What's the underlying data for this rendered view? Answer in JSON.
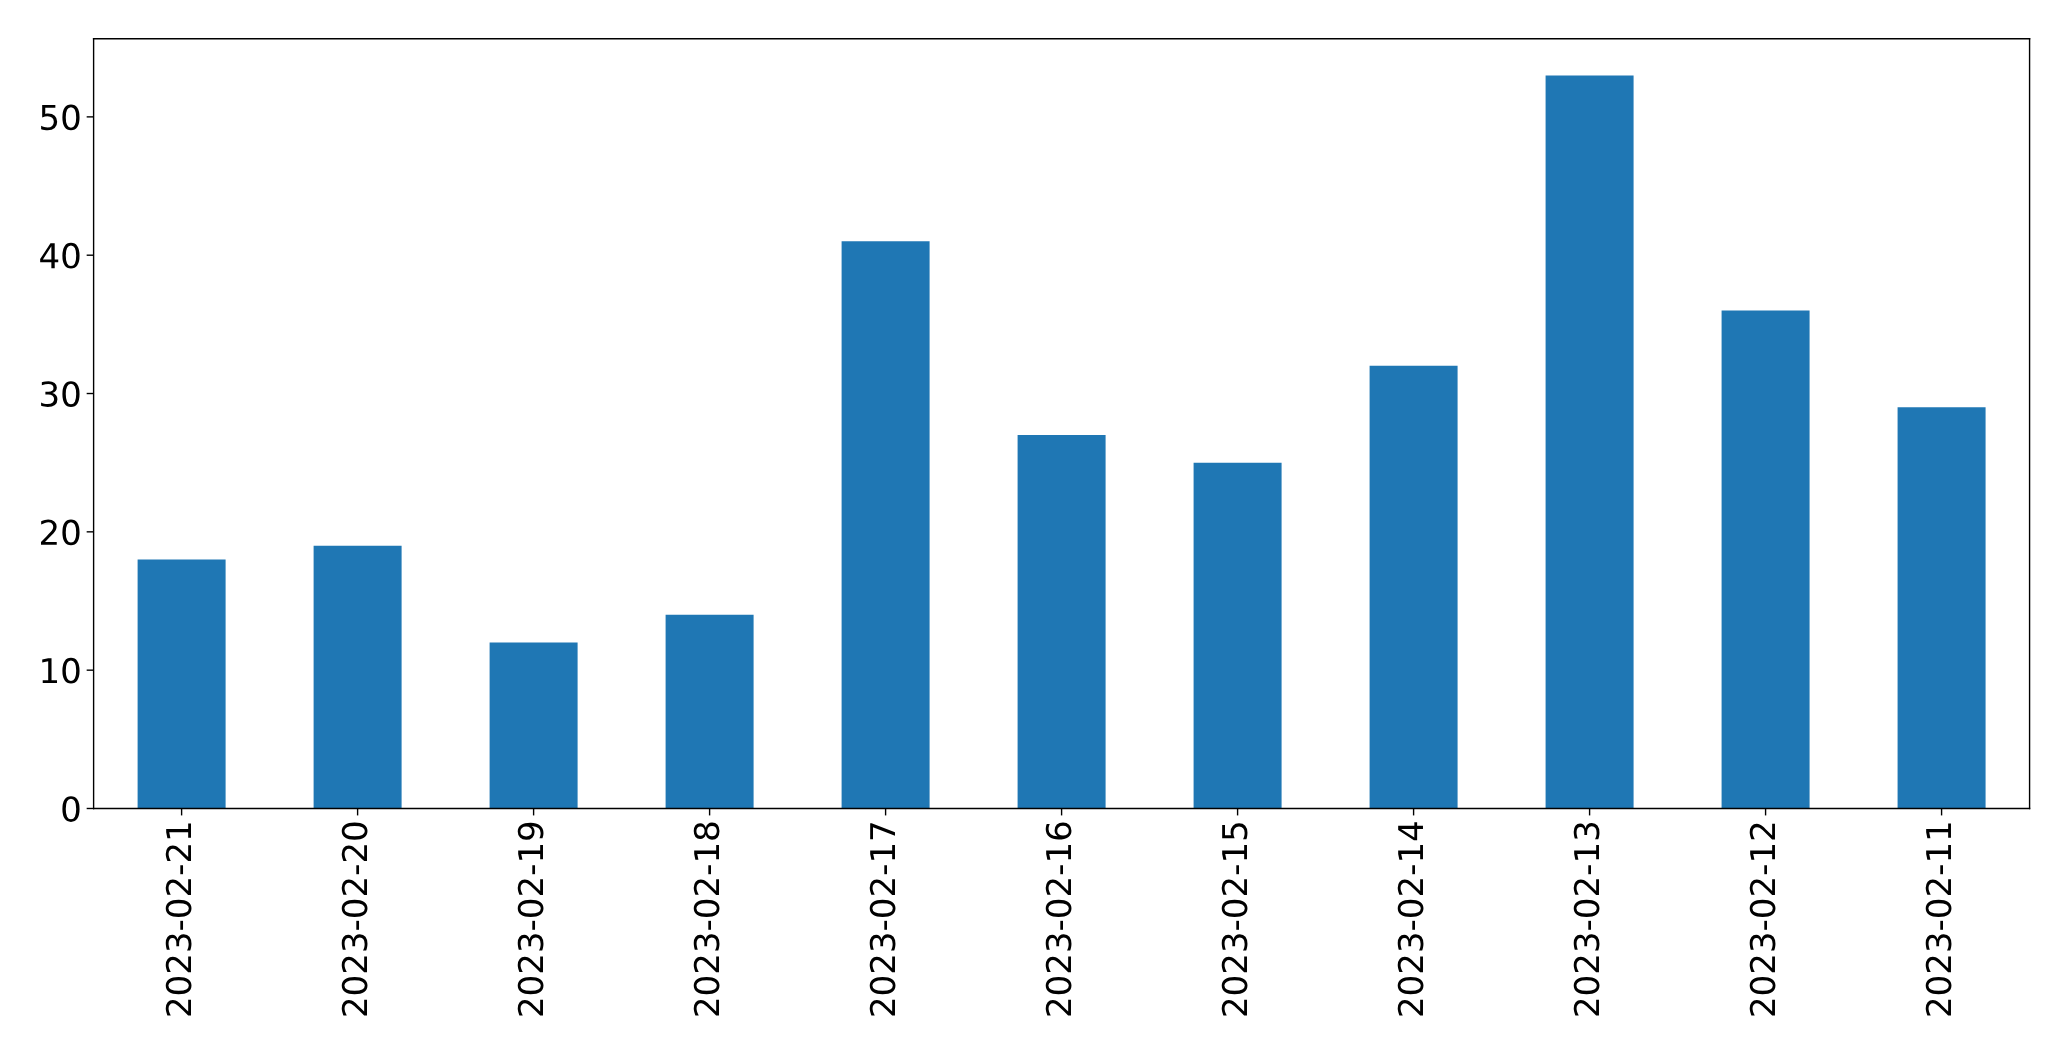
{
  "chart_data": {
    "type": "bar",
    "categories": [
      "2023-02-21",
      "2023-02-20",
      "2023-02-19",
      "2023-02-18",
      "2023-02-17",
      "2023-02-16",
      "2023-02-15",
      "2023-02-14",
      "2023-02-13",
      "2023-02-12",
      "2023-02-11"
    ],
    "values": [
      18,
      19,
      12,
      14,
      41,
      27,
      25,
      32,
      53,
      36,
      29
    ],
    "color": "#1f77b4",
    "ylim": [
      0,
      55.65
    ],
    "yticks": [
      0,
      10,
      20,
      30,
      40,
      50
    ],
    "grid": false,
    "legend": false
  }
}
